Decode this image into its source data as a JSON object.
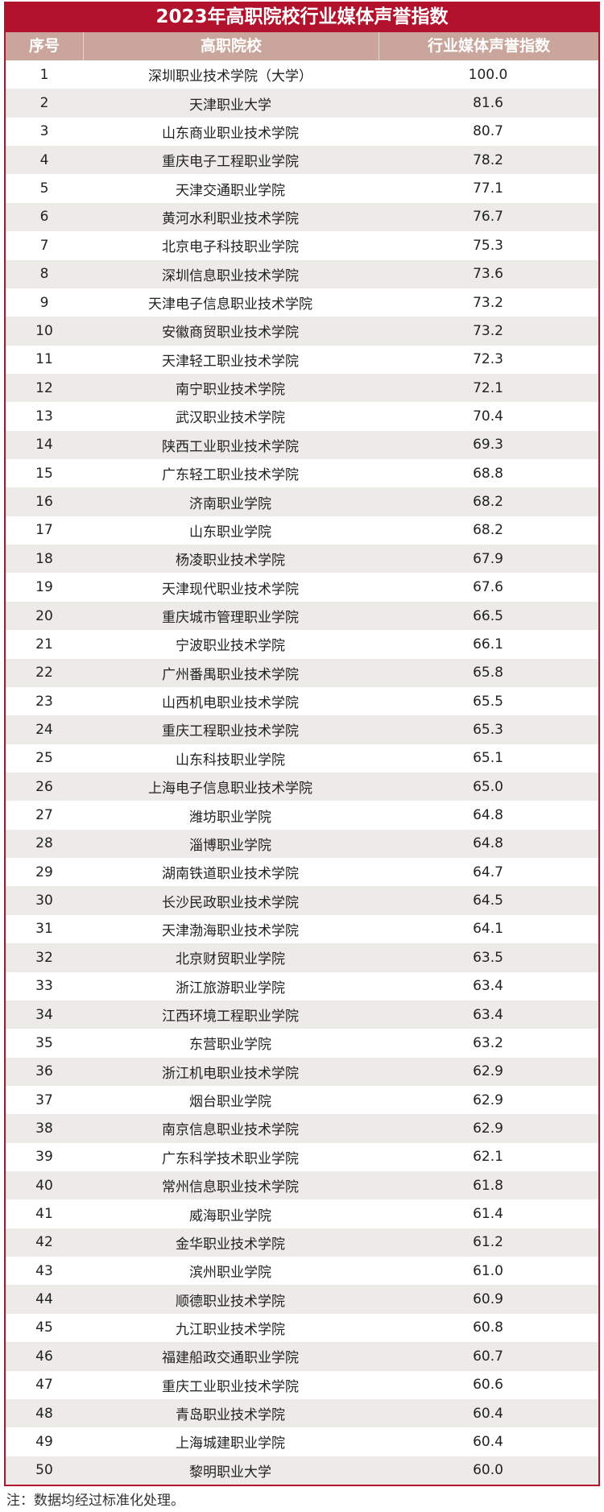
{
  "title": "2023年高职院校行业媒体声誉指数",
  "headers": {
    "rank": "序号",
    "school": "高职院校",
    "index": "行业媒体声誉指数"
  },
  "colors": {
    "title_bg": "#b3122c",
    "header_bg": "#c9a59b",
    "stripe": "#edebe7"
  },
  "rows": [
    [
      "1",
      "深圳职业技术学院（大学）",
      "100.0"
    ],
    [
      "2",
      "天津职业大学",
      "81.6"
    ],
    [
      "3",
      "山东商业职业技术学院",
      "80.7"
    ],
    [
      "4",
      "重庆电子工程职业学院",
      "78.2"
    ],
    [
      "5",
      "天津交通职业学院",
      "77.1"
    ],
    [
      "6",
      "黄河水利职业技术学院",
      "76.7"
    ],
    [
      "7",
      "北京电子科技职业学院",
      "75.3"
    ],
    [
      "8",
      "深圳信息职业技术学院",
      "73.6"
    ],
    [
      "9",
      "天津电子信息职业技术学院",
      "73.2"
    ],
    [
      "10",
      "安徽商贸职业技术学院",
      "73.2"
    ],
    [
      "11",
      "天津轻工职业技术学院",
      "72.3"
    ],
    [
      "12",
      "南宁职业技术学院",
      "72.1"
    ],
    [
      "13",
      "武汉职业技术学院",
      "70.4"
    ],
    [
      "14",
      "陕西工业职业技术学院",
      "69.3"
    ],
    [
      "15",
      "广东轻工职业技术学院",
      "68.8"
    ],
    [
      "16",
      "济南职业学院",
      "68.2"
    ],
    [
      "17",
      "山东职业学院",
      "68.2"
    ],
    [
      "18",
      "杨凌职业技术学院",
      "67.9"
    ],
    [
      "19",
      "天津现代职业技术学院",
      "67.6"
    ],
    [
      "20",
      "重庆城市管理职业学院",
      "66.5"
    ],
    [
      "21",
      "宁波职业技术学院",
      "66.1"
    ],
    [
      "22",
      "广州番禺职业技术学院",
      "65.8"
    ],
    [
      "23",
      "山西机电职业技术学院",
      "65.5"
    ],
    [
      "24",
      "重庆工程职业技术学院",
      "65.3"
    ],
    [
      "25",
      "山东科技职业学院",
      "65.1"
    ],
    [
      "26",
      "上海电子信息职业技术学院",
      "65.0"
    ],
    [
      "27",
      "潍坊职业学院",
      "64.8"
    ],
    [
      "28",
      "淄博职业学院",
      "64.8"
    ],
    [
      "29",
      "湖南铁道职业技术学院",
      "64.7"
    ],
    [
      "30",
      "长沙民政职业技术学院",
      "64.5"
    ],
    [
      "31",
      "天津渤海职业技术学院",
      "64.1"
    ],
    [
      "32",
      "北京财贸职业学院",
      "63.5"
    ],
    [
      "33",
      "浙江旅游职业学院",
      "63.4"
    ],
    [
      "34",
      "江西环境工程职业学院",
      "63.4"
    ],
    [
      "35",
      "东营职业学院",
      "63.2"
    ],
    [
      "36",
      "浙江机电职业技术学院",
      "62.9"
    ],
    [
      "37",
      "烟台职业学院",
      "62.9"
    ],
    [
      "38",
      "南京信息职业技术学院",
      "62.9"
    ],
    [
      "39",
      "广东科学技术职业学院",
      "62.1"
    ],
    [
      "40",
      "常州信息职业技术学院",
      "61.8"
    ],
    [
      "41",
      "威海职业学院",
      "61.4"
    ],
    [
      "42",
      "金华职业技术学院",
      "61.2"
    ],
    [
      "43",
      "滨州职业学院",
      "61.0"
    ],
    [
      "44",
      "顺德职业技术学院",
      "60.9"
    ],
    [
      "45",
      "九江职业技术学院",
      "60.8"
    ],
    [
      "46",
      "福建船政交通职业学院",
      "60.7"
    ],
    [
      "47",
      "重庆工业职业技术学院",
      "60.6"
    ],
    [
      "48",
      "青岛职业技术学院",
      "60.4"
    ],
    [
      "49",
      "上海城建职业学院",
      "60.4"
    ],
    [
      "50",
      "黎明职业大学",
      "60.0"
    ]
  ],
  "note": "注：数据均经过标准化处理。"
}
